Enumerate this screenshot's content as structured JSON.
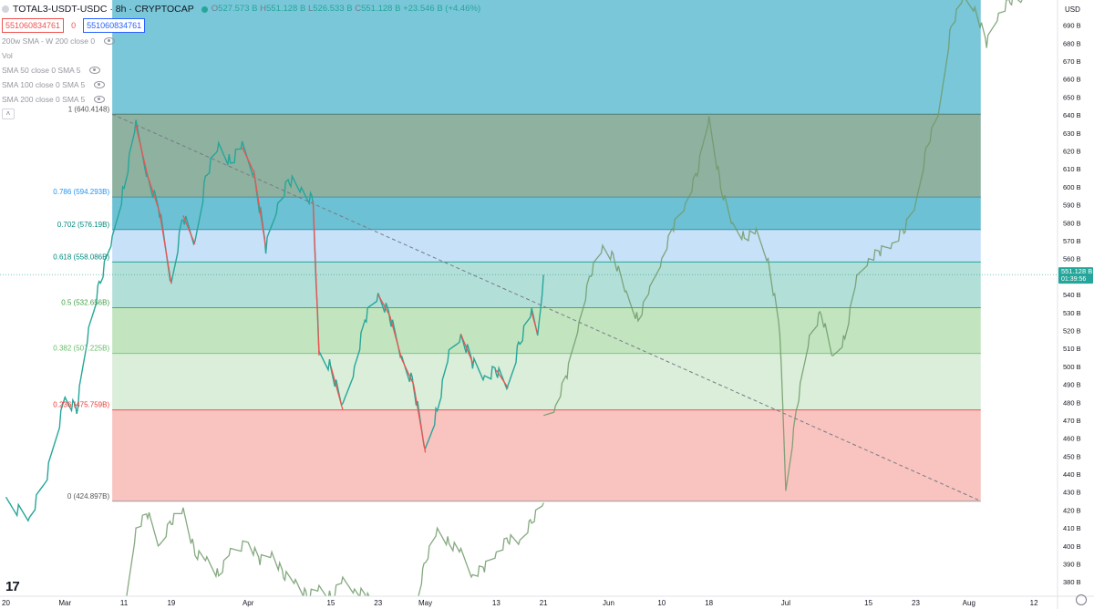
{
  "header": {
    "symbol_title": "TOTAL3-USDT-USDC · 8h · CRYPTOCAP",
    "ohlc": {
      "o_label": "O",
      "o": "527.573 B",
      "h_label": "H",
      "h": "551.128 B",
      "l_label": "L",
      "l": "526.533 B",
      "c_label": "C",
      "c": "551.128 B",
      "change": "+23.546 B (+4.46%)"
    },
    "sell_price": "551060834761",
    "spread": "0",
    "buy_price": "551060834761"
  },
  "indicators": [
    "200w SMA - W 200 close 0",
    "Vol",
    "SMA 50 close 0 SMA 5",
    "SMA 100 close 0 SMA 5",
    "SMA 200 close 0 SMA 5"
  ],
  "colors": {
    "up": "#26a69a",
    "down": "#ef5350",
    "fib_top": "#57b9d0",
    "fib_0786": "#7aa38f",
    "fib_0702": "#53b6cc",
    "fib_0618": "#bcdcf7",
    "fib_05": "#a6d9d2",
    "fib_0382": "#b7e0b5",
    "fib_0236": "#d3ebd2",
    "fib_0": "#f8b8b4",
    "projection": "#6e9a68",
    "price_tag": "#26a69a"
  },
  "chart_data": {
    "type": "line",
    "title": "TOTAL3-USDT-USDC · 8h · CRYPTOCAP",
    "y_axis_label": "USD",
    "ylim": [
      372,
      704
    ],
    "y_ticks": [
      "380 B",
      "390 B",
      "400 B",
      "410 B",
      "420 B",
      "430 B",
      "440 B",
      "450 B",
      "460 B",
      "470 B",
      "480 B",
      "490 B",
      "500 B",
      "510 B",
      "520 B",
      "530 B",
      "540 B",
      "550 B",
      "560 B",
      "570 B",
      "580 B",
      "590 B",
      "600 B",
      "610 B",
      "620 B",
      "630 B",
      "640 B",
      "650 B",
      "660 B",
      "670 B",
      "680 B",
      "690 B"
    ],
    "x_ticks": [
      "20",
      "Mar",
      "11",
      "19",
      "Apr",
      "15",
      "23",
      "May",
      "13",
      "21",
      "Jun",
      "10",
      "18",
      "Jul",
      "15",
      "23",
      "Aug",
      "12"
    ],
    "fib_levels": [
      {
        "ratio": 1,
        "label": "1 (640.4148)",
        "value": 640.4148
      },
      {
        "ratio": 0.786,
        "label": "0.786 (594.293B)",
        "value": 594.293
      },
      {
        "ratio": 0.702,
        "label": "0.702 (576.19B)",
        "value": 576.19
      },
      {
        "ratio": 0.618,
        "label": "0.618 (558.086B)",
        "value": 558.086
      },
      {
        "ratio": 0.5,
        "label": "0.5 (532.656B)",
        "value": 532.656
      },
      {
        "ratio": 0.382,
        "label": "0.382 (507.225B)",
        "value": 507.225
      },
      {
        "ratio": 0.236,
        "label": "0.236 (475.759B)",
        "value": 475.759
      },
      {
        "ratio": 0,
        "label": "0 (424.897B)",
        "value": 424.897
      }
    ],
    "fib_top_zone_value": 704,
    "last_price": {
      "value": 551.128,
      "label": "551.128 B",
      "countdown": "01:39:56"
    },
    "trendline": {
      "from": {
        "x": "Mar 9",
        "y": 640.4
      },
      "to": {
        "x": "Aug 3",
        "y": 425
      }
    },
    "series": [
      {
        "name": "price",
        "points": [
          [
            "Feb 20",
            424
          ],
          [
            "Feb 24",
            416
          ],
          [
            "Feb 27",
            440
          ],
          [
            "Mar 1",
            482
          ],
          [
            "Mar 3",
            476
          ],
          [
            "Mar 5",
            520
          ],
          [
            "Mar 7",
            548
          ],
          [
            "Mar 9",
            570
          ],
          [
            "Mar 11",
            600
          ],
          [
            "Mar 13",
            634
          ],
          [
            "Mar 15",
            606
          ],
          [
            "Mar 17",
            586
          ],
          [
            "Mar 19",
            546
          ],
          [
            "Mar 21",
            584
          ],
          [
            "Mar 23",
            568
          ],
          [
            "Mar 25",
            608
          ],
          [
            "Mar 27",
            622
          ],
          [
            "Mar 29",
            614
          ],
          [
            "Mar 31",
            622
          ],
          [
            "Apr 2",
            608
          ],
          [
            "Apr 4",
            566
          ],
          [
            "Apr 6",
            590
          ],
          [
            "Apr 8",
            604
          ],
          [
            "Apr 10",
            598
          ],
          [
            "Apr 12",
            592
          ],
          [
            "Apr 13",
            506
          ],
          [
            "Apr 15",
            500
          ],
          [
            "Apr 17",
            476
          ],
          [
            "Apr 19",
            500
          ],
          [
            "Apr 21",
            528
          ],
          [
            "Apr 23",
            540
          ],
          [
            "Apr 25",
            528
          ],
          [
            "Apr 27",
            504
          ],
          [
            "Apr 29",
            490
          ],
          [
            "May 1",
            452
          ],
          [
            "May 3",
            476
          ],
          [
            "May 5",
            506
          ],
          [
            "May 7",
            518
          ],
          [
            "May 9",
            502
          ],
          [
            "May 11",
            494
          ],
          [
            "May 13",
            498
          ],
          [
            "May 15",
            488
          ],
          [
            "May 17",
            514
          ],
          [
            "May 19",
            530
          ],
          [
            "May 20",
            518
          ],
          [
            "May 21",
            551
          ]
        ]
      },
      {
        "name": "projection",
        "points": [
          [
            "May 21",
            470
          ],
          [
            "May 23",
            478
          ],
          [
            "May 25",
            496
          ],
          [
            "May 27",
            524
          ],
          [
            "May 29",
            552
          ],
          [
            "May 31",
            566
          ],
          [
            "Jun 2",
            560
          ],
          [
            "Jun 4",
            540
          ],
          [
            "Jun 6",
            526
          ],
          [
            "Jun 8",
            542
          ],
          [
            "Jun 10",
            560
          ],
          [
            "Jun 12",
            578
          ],
          [
            "Jun 14",
            590
          ],
          [
            "Jun 16",
            608
          ],
          [
            "Jun 18",
            638
          ],
          [
            "Jun 20",
            600
          ],
          [
            "Jun 22",
            578
          ],
          [
            "Jun 24",
            572
          ],
          [
            "Jun 26",
            574
          ],
          [
            "Jun 28",
            560
          ],
          [
            "Jun 30",
            520
          ],
          [
            "Jul 1",
            430
          ],
          [
            "Jul 3",
            480
          ],
          [
            "Jul 5",
            516
          ],
          [
            "Jul 7",
            530
          ],
          [
            "Jul 9",
            504
          ],
          [
            "Jul 11",
            516
          ],
          [
            "Jul 13",
            548
          ],
          [
            "Jul 15",
            560
          ],
          [
            "Jul 17",
            564
          ],
          [
            "Jul 19",
            568
          ],
          [
            "Jul 21",
            576
          ],
          [
            "Jul 23",
            590
          ],
          [
            "Jul 25",
            624
          ],
          [
            "Jul 27",
            642
          ],
          [
            "Jul 29",
            690
          ],
          [
            "Jul 31",
            704
          ],
          [
            "Aug 2",
            700
          ],
          [
            "Aug 4",
            680
          ],
          [
            "Aug 6",
            696
          ],
          [
            "Aug 8",
            704
          ],
          [
            "Aug 10",
            704
          ]
        ]
      },
      {
        "name": "projection-lower",
        "points": [
          [
            "Mar 11",
            360
          ],
          [
            "Mar 13",
            410
          ],
          [
            "Mar 15",
            418
          ],
          [
            "Mar 17",
            400
          ],
          [
            "Mar 19",
            414
          ],
          [
            "Mar 21",
            420
          ],
          [
            "Mar 23",
            396
          ],
          [
            "Mar 25",
            392
          ],
          [
            "Mar 27",
            384
          ],
          [
            "Mar 29",
            396
          ],
          [
            "Apr 1",
            402
          ],
          [
            "Apr 3",
            392
          ],
          [
            "Apr 5",
            396
          ],
          [
            "Apr 7",
            384
          ],
          [
            "Apr 9",
            380
          ],
          [
            "Apr 11",
            372
          ],
          [
            "Apr 13",
            376
          ],
          [
            "Apr 15",
            372
          ],
          [
            "Apr 17",
            380
          ],
          [
            "Apr 19",
            376
          ],
          [
            "Apr 21",
            372
          ],
          [
            "Apr 23",
            364
          ],
          [
            "Apr 26",
            360
          ],
          [
            "Apr 29",
            360
          ],
          [
            "May 1",
            392
          ],
          [
            "May 3",
            408
          ],
          [
            "May 5",
            402
          ],
          [
            "May 7",
            396
          ],
          [
            "May 9",
            384
          ],
          [
            "May 11",
            388
          ],
          [
            "May 13",
            396
          ],
          [
            "May 15",
            404
          ],
          [
            "May 17",
            402
          ],
          [
            "May 19",
            414
          ],
          [
            "May 21",
            424
          ]
        ]
      }
    ]
  }
}
